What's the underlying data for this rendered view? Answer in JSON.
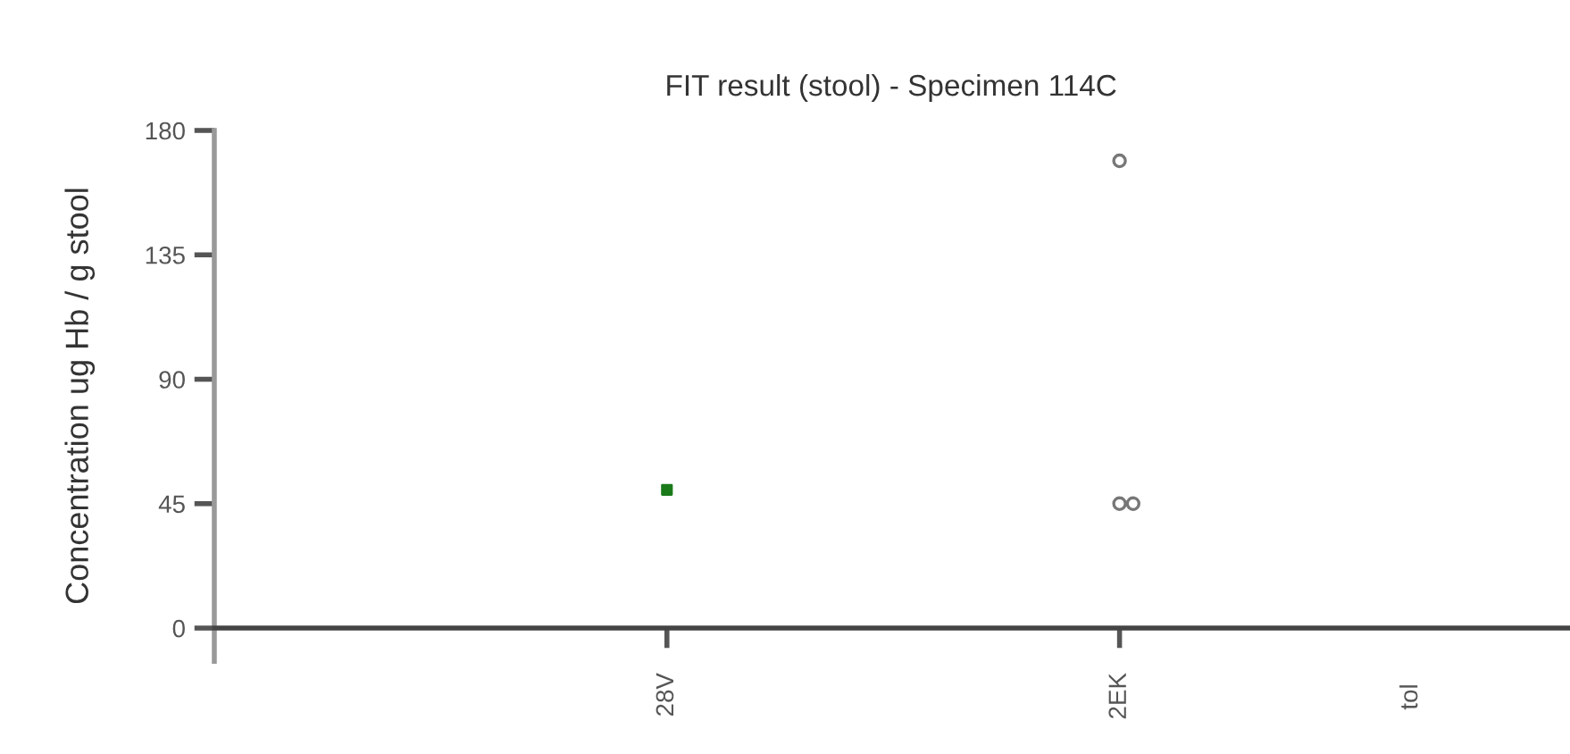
{
  "chart_data": {
    "type": "scatter",
    "title": "FIT result (stool) - Specimen 114C",
    "ylabel": "Concentration ug Hb / g stool",
    "categories": [
      "28V",
      "2EK"
    ],
    "series": [
      {
        "color": "#1a7a1a",
        "x": [
          "28V"
        ],
        "values": [
          50
        ],
        "marker": "square"
      },
      {
        "color": "#777777",
        "x": [
          "2EK",
          "2EK",
          "2EK"
        ],
        "values": [
          169,
          45,
          45
        ],
        "marker": "circle"
      }
    ],
    "annotations": [
      "tol"
    ],
    "ylim": [
      -12,
      180
    ],
    "yticks": [
      0,
      45,
      90,
      135,
      180
    ],
    "grid": false,
    "legend": false
  }
}
